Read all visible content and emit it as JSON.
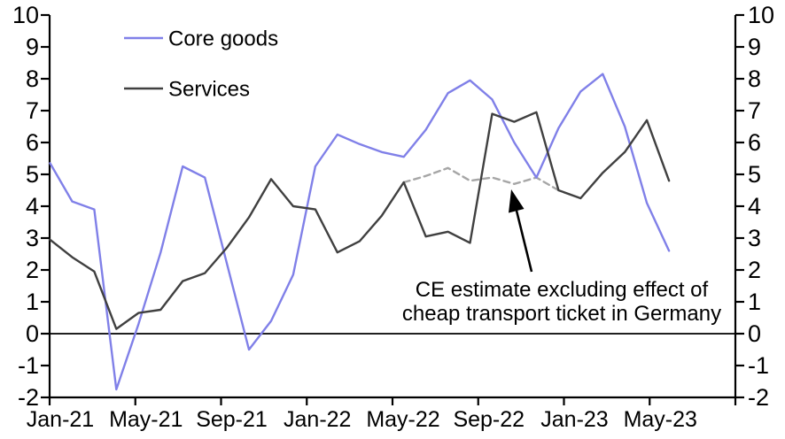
{
  "chart_data": {
    "type": "line",
    "title": "",
    "xlabel": "",
    "ylabel": "",
    "ylim": [
      -2,
      10
    ],
    "y_ticks": [
      -2,
      -1,
      0,
      1,
      2,
      3,
      4,
      5,
      6,
      7,
      8,
      9,
      10
    ],
    "y_axis_sides": [
      "left",
      "right"
    ],
    "grid": "off",
    "zero_line": true,
    "x_tick_labels": [
      "Jan-21",
      "May-21",
      "Sep-21",
      "Jan-22",
      "May-22",
      "Sep-22",
      "Jan-23",
      "May-23"
    ],
    "categories": [
      "Jan-21",
      "Feb-21",
      "Mar-21",
      "Apr-21",
      "May-21",
      "Jun-21",
      "Jul-21",
      "Aug-21",
      "Sep-21",
      "Oct-21",
      "Nov-21",
      "Dec-21",
      "Jan-22",
      "Feb-22",
      "Mar-22",
      "Apr-22",
      "May-22",
      "Jun-22",
      "Jul-22",
      "Aug-22",
      "Sep-22",
      "Oct-22",
      "Nov-22",
      "Dec-22",
      "Jan-23",
      "Feb-23",
      "Mar-23",
      "Apr-23",
      "May-23"
    ],
    "series": [
      {
        "name": "Core goods",
        "color": "#8080E8",
        "style": "solid",
        "start_index": 0,
        "values": [
          5.35,
          4.15,
          3.9,
          -1.75,
          0.3,
          2.55,
          5.25,
          4.9,
          2.2,
          -0.5,
          0.4,
          1.85,
          5.25,
          6.25,
          5.95,
          5.7,
          5.55,
          6.4,
          7.55,
          7.95,
          7.35,
          6.0,
          4.9,
          6.45,
          7.6,
          8.15,
          6.5,
          4.1,
          2.6
        ]
      },
      {
        "name": "Services",
        "color": "#404040",
        "style": "solid",
        "start_index": 0,
        "values": [
          2.95,
          2.4,
          1.95,
          0.15,
          0.65,
          0.75,
          1.65,
          1.9,
          2.7,
          3.65,
          4.85,
          4.0,
          3.9,
          2.55,
          2.9,
          3.7,
          4.75,
          3.05,
          3.2,
          2.85,
          6.9,
          6.65,
          6.95,
          4.5,
          4.25,
          5.05,
          5.7,
          6.7,
          4.8
        ]
      },
      {
        "name": "CE estimate (services excl. cheap transport ticket)",
        "color": "#A6A6A6",
        "style": "dashed",
        "start_index": 16,
        "values": [
          4.75,
          4.95,
          5.2,
          4.8,
          4.9,
          4.7,
          4.9,
          4.5
        ]
      }
    ],
    "legend": {
      "position": "top-left-inside",
      "items": [
        {
          "label": "Core goods",
          "color": "#8080E8"
        },
        {
          "label": "Services",
          "color": "#404040"
        }
      ]
    },
    "annotation": {
      "lines": [
        "CE estimate excluding effect of",
        "cheap transport ticket in Germany"
      ],
      "arrow_target_category": "Oct-22",
      "arrow_target_value": 4.7
    }
  },
  "colors": {
    "axis": "#000000",
    "core_goods": "#8080E8",
    "services": "#404040",
    "ce_estimate_dashed": "#A6A6A6",
    "text": "#000000",
    "background": "#FFFFFF"
  }
}
